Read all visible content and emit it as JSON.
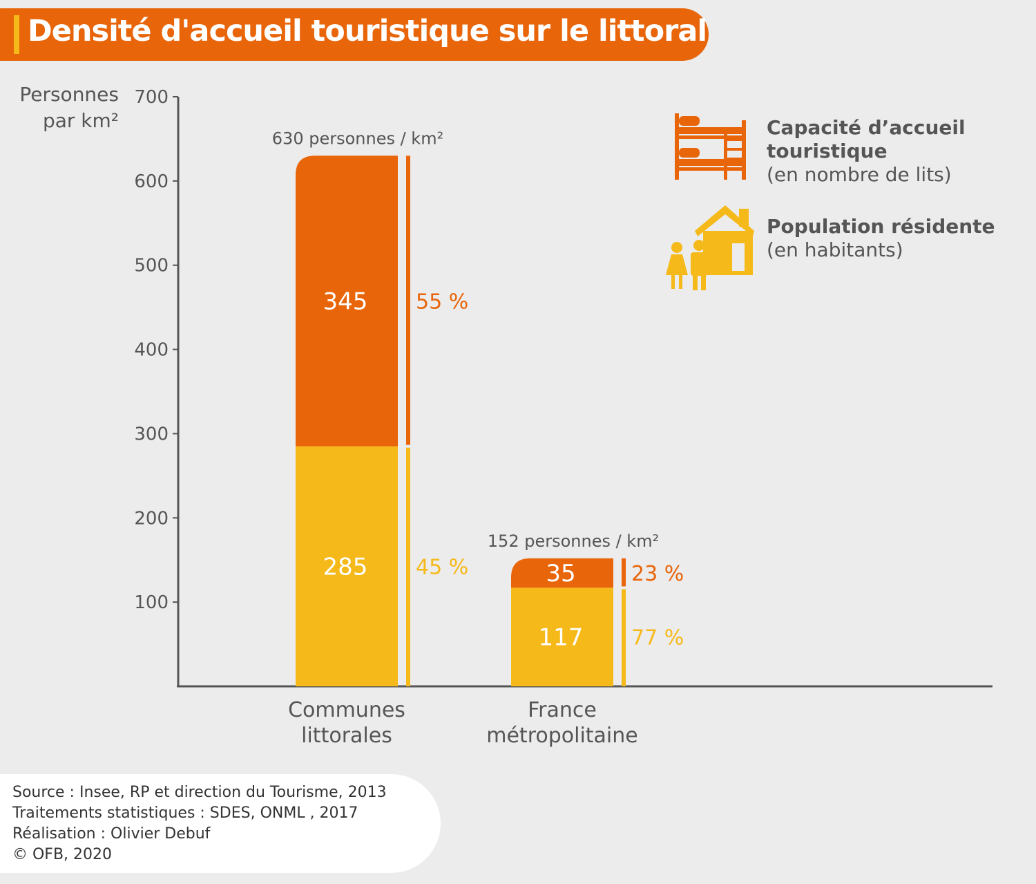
{
  "title": "Densité d'accueil touristique sur le littoral",
  "colors": {
    "capacity": "#e8650a",
    "population": "#f6b91a",
    "axis": "#555555",
    "text": "#555555",
    "background": "#ececec"
  },
  "chart_data": {
    "type": "bar",
    "stacked": true,
    "ylabel": [
      "Personnes",
      "par km²"
    ],
    "ylim": [
      0,
      700
    ],
    "yticks": [
      "100",
      "200",
      "300",
      "400",
      "500",
      "600",
      "700"
    ],
    "categories": [
      [
        "Communes",
        "littorales"
      ],
      [
        "France",
        "métropolitaine"
      ]
    ],
    "totals": [
      "630 personnes / km²",
      "152 personnes / km²"
    ],
    "series": [
      {
        "key": "population",
        "name": "Population résidente",
        "values": [
          285,
          117
        ],
        "labels": [
          "285",
          "117"
        ],
        "percent_labels": [
          "45 %",
          "77 %"
        ]
      },
      {
        "key": "capacity",
        "name": "Capacité d’accueil touristique",
        "values": [
          345,
          35
        ],
        "labels": [
          "345",
          "35"
        ],
        "percent_labels": [
          "55 %",
          "23 %"
        ]
      }
    ],
    "legend": [
      {
        "key": "capacity",
        "icon": "bunk-bed-icon",
        "lines": [
          "Capacité d’accueil",
          "touristique"
        ],
        "sub": "(en nombre de lits)"
      },
      {
        "key": "population",
        "icon": "house-people-icon",
        "lines": [
          "Population résidente"
        ],
        "sub": "(en habitants)"
      }
    ],
    "legend_position": "top-right",
    "grid": false
  },
  "footer": {
    "lines": [
      "Source : Insee, RP et direction du Tourisme, 2013",
      "Traitements statistiques : SDES, ONML , 2017",
      "Réalisation : Olivier Debuf",
      "© OFB, 2020"
    ]
  }
}
